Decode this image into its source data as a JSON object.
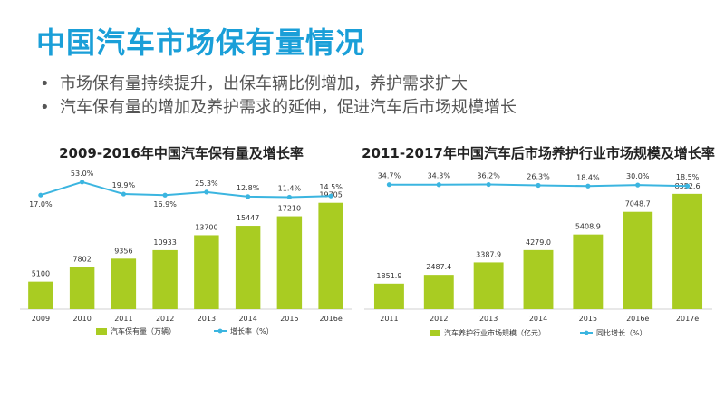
{
  "page": {
    "title": "中国汽车市场保有量情况",
    "bullets": [
      "市场保有量持续提升，出保车辆比例增加，养护需求扩大",
      "汽车保有量的增加及养护需求的延伸，促进汽车后市场规模增长"
    ]
  },
  "colors": {
    "title": "#1a9fd8",
    "bar": "#a9cc22",
    "line": "#3bb5e0"
  },
  "chart_data": [
    {
      "type": "bar",
      "title": "2009-2016年中国汽车保有量及增长率",
      "categories": [
        "2009",
        "2010",
        "2011",
        "2012",
        "2013",
        "2014",
        "2015",
        "2016e"
      ],
      "series": [
        {
          "name": "汽车保有量（万辆）",
          "type": "bar",
          "values": [
            5100,
            7802,
            9356,
            10933,
            13700,
            15447,
            17210,
            19705
          ]
        },
        {
          "name": "增长率（%）",
          "type": "line",
          "values": [
            17.0,
            53.0,
            19.9,
            16.9,
            25.3,
            12.8,
            11.4,
            14.5
          ]
        }
      ],
      "value_labels": [
        "5100",
        "7802",
        "9356",
        "10933",
        "13700",
        "15447",
        "17210",
        "19705"
      ],
      "line_labels": [
        "17.0%",
        "53.0%",
        "19.9%",
        "16.9%",
        "25.3%",
        "12.8%",
        "11.4%",
        "14.5%"
      ],
      "bar_max": 21000,
      "line_range": [
        -40,
        80
      ]
    },
    {
      "type": "bar",
      "title": "2011-2017年中国汽车后市场养护行业市场规模及增长率",
      "categories": [
        "2011",
        "2012",
        "2013",
        "2014",
        "2015",
        "2016e",
        "2017e"
      ],
      "series": [
        {
          "name": "汽车养护行业市场规模（亿元）",
          "type": "bar",
          "values": [
            1851.9,
            2487.4,
            3387.9,
            4279.0,
            5408.9,
            7048.7,
            8352.6
          ]
        },
        {
          "name": "同比增长（%）",
          "type": "line",
          "values": [
            34.7,
            34.3,
            36.2,
            26.3,
            18.4,
            30.0,
            18.5
          ]
        }
      ],
      "value_labels": [
        "1851.9",
        "2487.4",
        "3387.9",
        "4279.0",
        "5408.9",
        "7048.7",
        "8352.6"
      ],
      "line_labels": [
        "34.7%",
        "34.3%",
        "36.2%",
        "26.3%",
        "18.4%",
        "30.0%",
        "18.5%"
      ],
      "bar_max": 9000,
      "line_range": [
        -200,
        200
      ]
    }
  ]
}
